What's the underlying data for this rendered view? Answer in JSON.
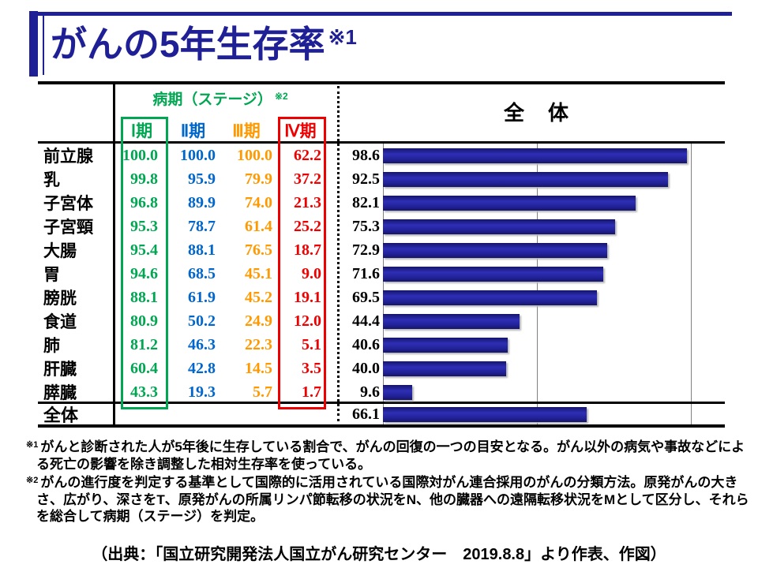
{
  "colors": {
    "navy": "#1F1F96",
    "green": "#00A651",
    "blue": "#0066CC",
    "orange": "#FF9900",
    "red": "#EE0000",
    "bar": "#23239C",
    "grid": "#808080"
  },
  "title": {
    "text": "がんの5年生存率",
    "footnote_marker": "※1"
  },
  "table": {
    "stage_group_label": "病期（ステージ）",
    "stage_group_note": "※2",
    "overall_label": "全　体",
    "stage_headers": [
      "Ⅰ期",
      "Ⅱ期",
      "Ⅲ期",
      "Ⅳ期"
    ],
    "rows": [
      {
        "label": "前立腺",
        "s1": "100.0",
        "s2": "100.0",
        "s3": "100.0",
        "s4": "62.2",
        "overall": "98.6"
      },
      {
        "label": "乳",
        "s1": "99.8",
        "s2": "95.9",
        "s3": "79.9",
        "s4": "37.2",
        "overall": "92.5"
      },
      {
        "label": "子宮体",
        "s1": "96.8",
        "s2": "89.9",
        "s3": "74.0",
        "s4": "21.3",
        "overall": "82.1"
      },
      {
        "label": "子宮頸",
        "s1": "95.3",
        "s2": "78.7",
        "s3": "61.4",
        "s4": "25.2",
        "overall": "75.3"
      },
      {
        "label": "大腸",
        "s1": "95.4",
        "s2": "88.1",
        "s3": "76.5",
        "s4": "18.7",
        "overall": "72.9"
      },
      {
        "label": "胃",
        "s1": "94.6",
        "s2": "68.5",
        "s3": "45.1",
        "s4": "9.0",
        "overall": "71.6"
      },
      {
        "label": "膀胱",
        "s1": "88.1",
        "s2": "61.9",
        "s3": "45.2",
        "s4": "19.1",
        "overall": "69.5"
      },
      {
        "label": "食道",
        "s1": "80.9",
        "s2": "50.2",
        "s3": "24.9",
        "s4": "12.0",
        "overall": "44.4"
      },
      {
        "label": "肺",
        "s1": "81.2",
        "s2": "46.3",
        "s3": "22.3",
        "s4": "5.1",
        "overall": "40.6"
      },
      {
        "label": "肝臓",
        "s1": "60.4",
        "s2": "42.8",
        "s3": "14.5",
        "s4": "3.5",
        "overall": "40.0"
      },
      {
        "label": "膵臓",
        "s1": "43.3",
        "s2": "19.3",
        "s3": "5.7",
        "s4": "1.7",
        "overall": "9.6"
      }
    ],
    "total_row": {
      "label": "全体",
      "overall": "66.1"
    }
  },
  "chart_data": {
    "type": "bar",
    "orientation": "horizontal",
    "title": "全　体",
    "categories": [
      "前立腺",
      "乳",
      "子宮体",
      "子宮頸",
      "大腸",
      "胃",
      "膀胱",
      "食道",
      "肺",
      "肝臓",
      "膵臓",
      "全体"
    ],
    "series": [
      {
        "name": "Ⅰ期",
        "values": [
          100.0,
          99.8,
          96.8,
          95.3,
          95.4,
          94.6,
          88.1,
          80.9,
          81.2,
          60.4,
          43.3,
          null
        ]
      },
      {
        "name": "Ⅱ期",
        "values": [
          100.0,
          95.9,
          89.9,
          78.7,
          88.1,
          68.5,
          61.9,
          50.2,
          46.3,
          42.8,
          19.3,
          null
        ]
      },
      {
        "name": "Ⅲ期",
        "values": [
          100.0,
          79.9,
          74.0,
          61.4,
          76.5,
          45.1,
          45.2,
          24.9,
          22.3,
          14.5,
          5.7,
          null
        ]
      },
      {
        "name": "Ⅳ期",
        "values": [
          62.2,
          37.2,
          21.3,
          25.2,
          18.7,
          9.0,
          19.1,
          12.0,
          5.1,
          3.5,
          1.7,
          null
        ]
      },
      {
        "name": "全体",
        "values": [
          98.6,
          92.5,
          82.1,
          75.3,
          72.9,
          71.6,
          69.5,
          44.4,
          40.6,
          40.0,
          9.6,
          66.1
        ]
      }
    ],
    "plotted_series": "全体",
    "bar_color": "#23239C",
    "xlim": [
      0,
      100
    ],
    "gridlines_x": [
      0,
      50,
      100
    ],
    "grid": true,
    "legend_position": "none"
  },
  "footnotes": [
    {
      "marker": "※1",
      "text": "がんと診断された人が5年後に生存している割合で、がんの回復の一つの目安となる。がん以外の病気や事故などによる死亡の影響を除き調整した相対生存率を使っている。"
    },
    {
      "marker": "※2",
      "text": "がんの進行度を判定する基準として国際的に活用されている国際対がん連合採用のがんの分類方法。原発がんの大きさ、広がり、深さをT、原発がんの所属リンパ節転移の状況をN、他の臓器への遠隔転移状況をMとして区分し、それらを総合して病期（ステージ）を判定。"
    }
  ],
  "source": "（出典：「国立研究開発法人国立がん研究センター　2019.8.8」より作表、作図）"
}
